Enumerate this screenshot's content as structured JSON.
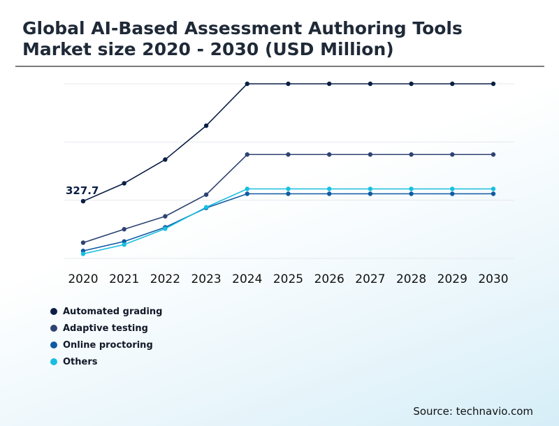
{
  "title": "Global AI-Based Assessment Authoring Tools Market size 2020 - 2030 (USD Million)",
  "source": "Source: technavio.com",
  "chart_data": {
    "type": "line",
    "title": "Global AI-Based Assessment Authoring Tools Market size 2020 - 2030 (USD Million)",
    "x": [
      "2020",
      "2021",
      "2022",
      "2023",
      "2024",
      "2025",
      "2026",
      "2027",
      "2028",
      "2029",
      "2030"
    ],
    "ylim": [
      0,
      1000
    ],
    "grid": true,
    "legend_position": "bottom-left",
    "annotations": [
      {
        "series": "Automated grading",
        "x": "2020",
        "label": "327.7"
      }
    ],
    "series": [
      {
        "name": "Automated grading",
        "color": "#0b1f45",
        "values": [
          327.7,
          430,
          566,
          760,
          1000,
          1000,
          1000,
          1000,
          1000,
          1000,
          1000
        ]
      },
      {
        "name": "Adaptive testing",
        "color": "#2e4372",
        "values": [
          90,
          167,
          241,
          365,
          595,
          595,
          595,
          595,
          595,
          595,
          595
        ]
      },
      {
        "name": "Online proctoring",
        "color": "#0f5aa3",
        "values": [
          43,
          97,
          178,
          289,
          370,
          370,
          370,
          370,
          370,
          370,
          370
        ]
      },
      {
        "name": "Others",
        "color": "#18bfe0",
        "values": [
          26,
          79,
          170,
          293,
          398,
          398,
          398,
          398,
          398,
          398,
          398
        ]
      }
    ]
  }
}
